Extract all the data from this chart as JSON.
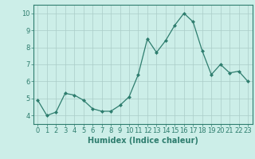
{
  "x": [
    0,
    1,
    2,
    3,
    4,
    5,
    6,
    7,
    8,
    9,
    10,
    11,
    12,
    13,
    14,
    15,
    16,
    17,
    18,
    19,
    20,
    21,
    22,
    23
  ],
  "y": [
    4.9,
    4.0,
    4.2,
    5.3,
    5.2,
    4.9,
    4.4,
    4.25,
    4.25,
    4.6,
    5.1,
    6.4,
    8.5,
    7.7,
    8.4,
    9.3,
    10.0,
    9.5,
    7.8,
    6.4,
    7.0,
    6.5,
    6.6,
    6.0
  ],
  "line_color": "#2e7d6e",
  "marker": "D",
  "marker_size": 2.0,
  "bg_color": "#cceee8",
  "grid_color": "#aaccc8",
  "xlabel": "Humidex (Indice chaleur)",
  "ylim": [
    3.5,
    10.5
  ],
  "xlim": [
    -0.5,
    23.5
  ],
  "yticks": [
    4,
    5,
    6,
    7,
    8,
    9,
    10
  ],
  "xticks": [
    0,
    1,
    2,
    3,
    4,
    5,
    6,
    7,
    8,
    9,
    10,
    11,
    12,
    13,
    14,
    15,
    16,
    17,
    18,
    19,
    20,
    21,
    22,
    23
  ],
  "tick_color": "#2e7d6e",
  "spine_color": "#2e7d6e",
  "font_color": "#2e7d6e",
  "xlabel_fontsize": 7,
  "tick_fontsize": 6
}
